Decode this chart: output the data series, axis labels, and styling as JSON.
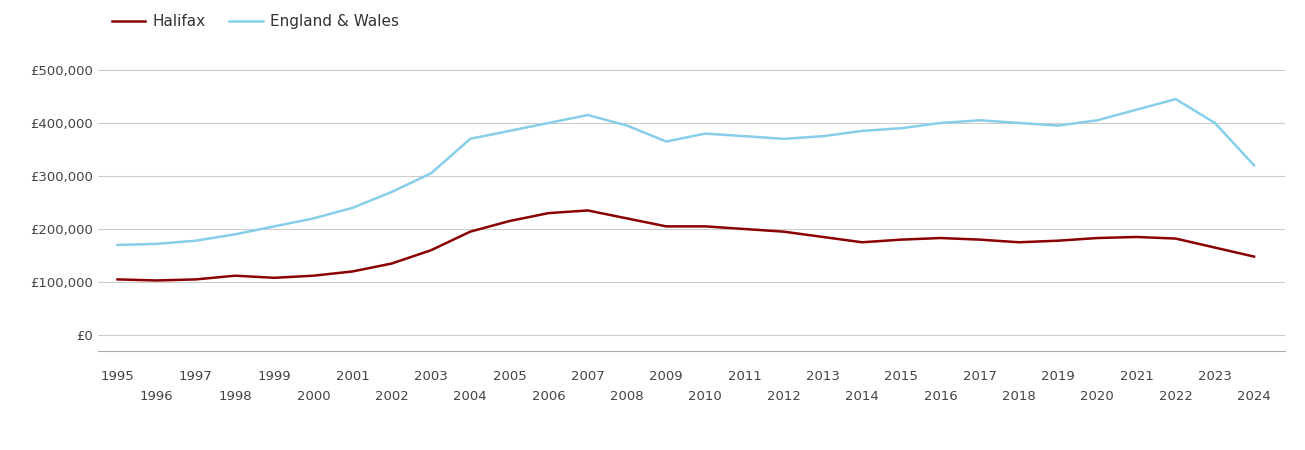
{
  "years": [
    1995,
    1996,
    1997,
    1998,
    1999,
    2000,
    2001,
    2002,
    2003,
    2004,
    2005,
    2006,
    2007,
    2008,
    2009,
    2010,
    2011,
    2012,
    2013,
    2014,
    2015,
    2016,
    2017,
    2018,
    2019,
    2020,
    2021,
    2022,
    2023,
    2024
  ],
  "halifax": [
    105000,
    103000,
    105000,
    112000,
    108000,
    112000,
    120000,
    135000,
    160000,
    195000,
    215000,
    230000,
    235000,
    220000,
    205000,
    205000,
    200000,
    195000,
    185000,
    175000,
    180000,
    183000,
    180000,
    175000,
    178000,
    183000,
    185000,
    182000,
    165000,
    148000
  ],
  "england_wales": [
    170000,
    172000,
    178000,
    190000,
    205000,
    220000,
    240000,
    270000,
    305000,
    370000,
    385000,
    400000,
    415000,
    395000,
    365000,
    380000,
    375000,
    370000,
    375000,
    385000,
    390000,
    400000,
    405000,
    400000,
    395000,
    405000,
    425000,
    445000,
    400000,
    320000
  ],
  "halifax_color": "#8B0000",
  "ew_color": "#87CEEB",
  "background_color": "#ffffff",
  "grid_color": "#cccccc",
  "legend_labels": [
    "Halifax",
    "England & Wales"
  ],
  "yticks": [
    0,
    100000,
    200000,
    300000,
    400000,
    500000
  ],
  "ytick_labels": [
    "£0",
    "£100,000",
    "£200,000",
    "£300,000",
    "£400,000",
    "£500,000"
  ],
  "ylim": [
    -30000,
    530000
  ],
  "xlim": [
    1994.5,
    2024.8
  ]
}
